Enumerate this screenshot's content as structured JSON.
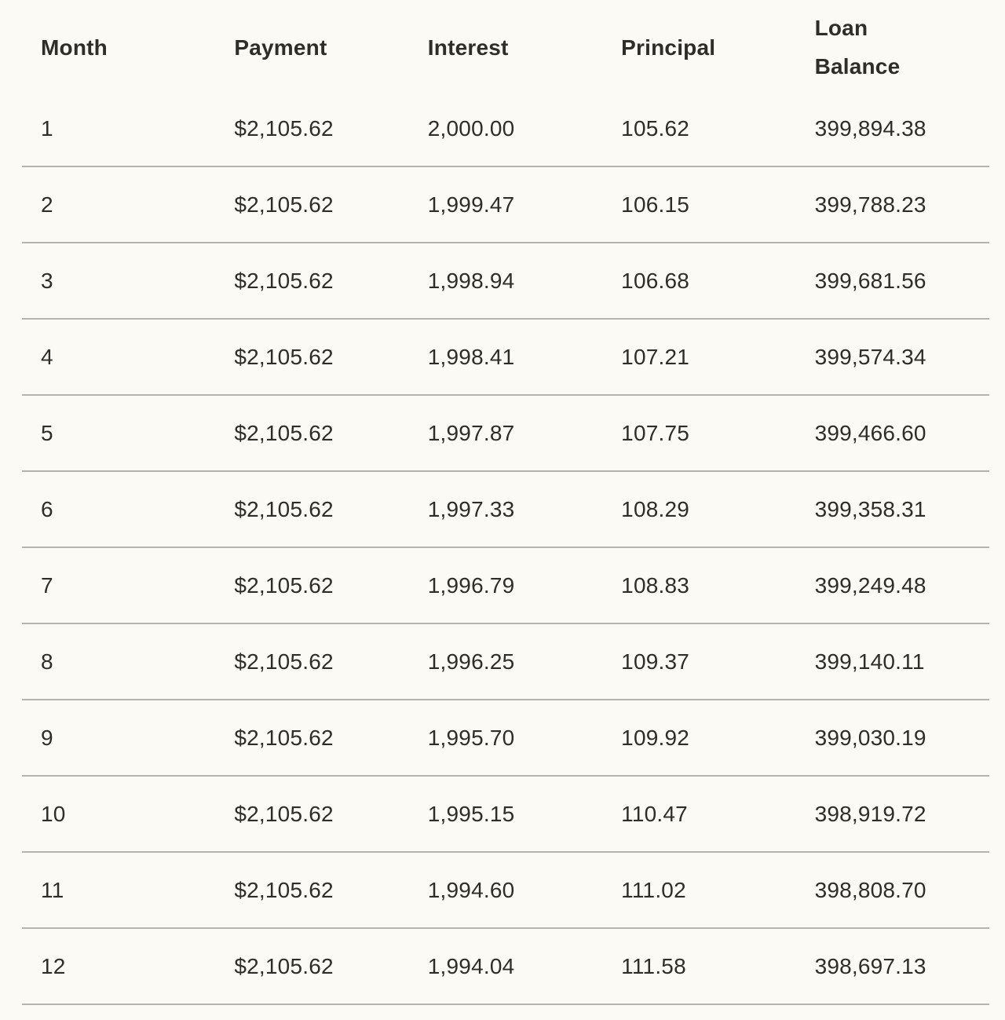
{
  "colors": {
    "background": "#fcfaf4",
    "text": "#2f2d28",
    "row_divider": "#b5b3ae"
  },
  "chart_data": {
    "type": "table",
    "columns": [
      "Month",
      "Payment",
      "Interest",
      "Principal",
      "Loan\nBalance"
    ],
    "rows": [
      {
        "month": "1",
        "payment": "$2,105.62",
        "interest": "2,000.00",
        "principal": "105.62",
        "loan_balance": "399,894.38"
      },
      {
        "month": "2",
        "payment": "$2,105.62",
        "interest": "1,999.47",
        "principal": "106.15",
        "loan_balance": "399,788.23"
      },
      {
        "month": "3",
        "payment": "$2,105.62",
        "interest": "1,998.94",
        "principal": "106.68",
        "loan_balance": "399,681.56"
      },
      {
        "month": "4",
        "payment": "$2,105.62",
        "interest": "1,998.41",
        "principal": "107.21",
        "loan_balance": "399,574.34"
      },
      {
        "month": "5",
        "payment": "$2,105.62",
        "interest": "1,997.87",
        "principal": "107.75",
        "loan_balance": "399,466.60"
      },
      {
        "month": "6",
        "payment": "$2,105.62",
        "interest": "1,997.33",
        "principal": "108.29",
        "loan_balance": "399,358.31"
      },
      {
        "month": "7",
        "payment": "$2,105.62",
        "interest": "1,996.79",
        "principal": "108.83",
        "loan_balance": "399,249.48"
      },
      {
        "month": "8",
        "payment": "$2,105.62",
        "interest": "1,996.25",
        "principal": "109.37",
        "loan_balance": "399,140.11"
      },
      {
        "month": "9",
        "payment": "$2,105.62",
        "interest": "1,995.70",
        "principal": "109.92",
        "loan_balance": "399,030.19"
      },
      {
        "month": "10",
        "payment": "$2,105.62",
        "interest": "1,995.15",
        "principal": "110.47",
        "loan_balance": "398,919.72"
      },
      {
        "month": "11",
        "payment": "$2,105.62",
        "interest": "1,994.60",
        "principal": "111.02",
        "loan_balance": "398,808.70"
      },
      {
        "month": "12",
        "payment": "$2,105.62",
        "interest": "1,994.04",
        "principal": "111.58",
        "loan_balance": "398,697.13"
      }
    ]
  }
}
